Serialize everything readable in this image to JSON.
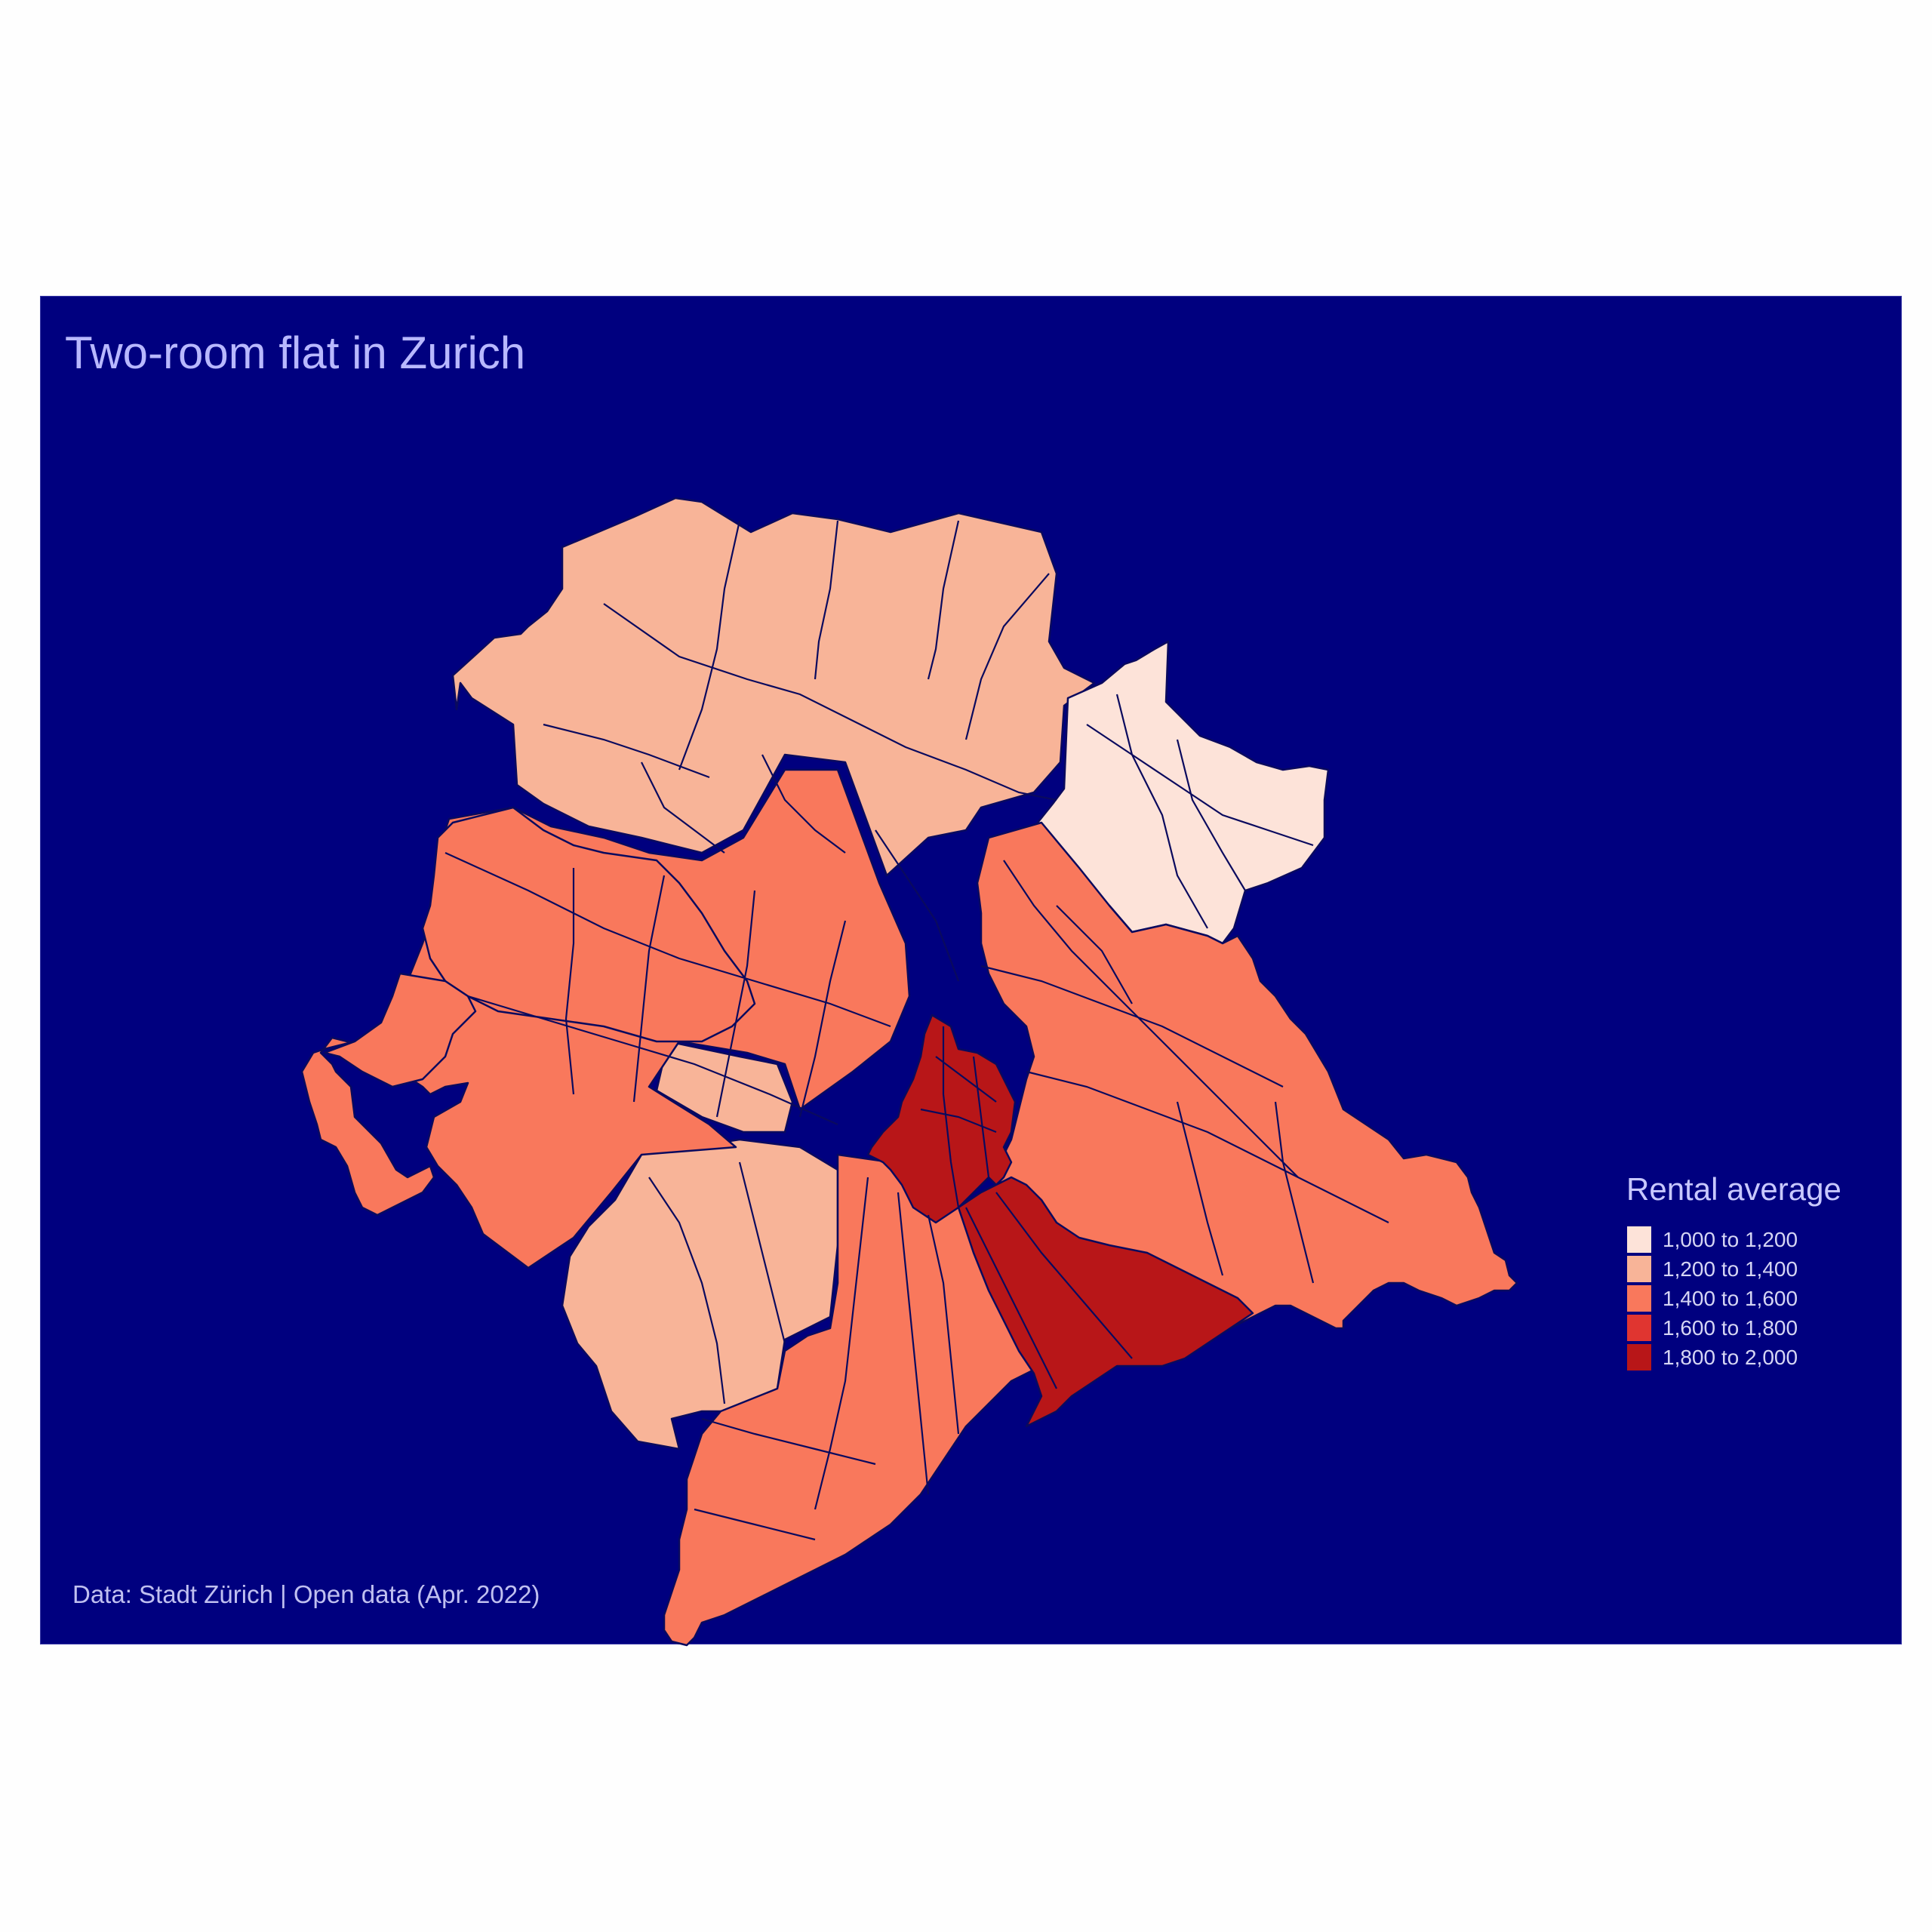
{
  "title": "Two-room flat in Zurich",
  "caption": "Data: Stadt Zürich | Open data (Apr. 2022)",
  "legend": {
    "title": "Rental average",
    "items": [
      {
        "label": "1,000 to 1,200",
        "color": "#fde3d9"
      },
      {
        "label": "1,200 to 1,400",
        "color": "#f8b498"
      },
      {
        "label": "1,400 to 1,600",
        "color": "#f9785c"
      },
      {
        "label": "1,600 to 1,800",
        "color": "#e03530"
      },
      {
        "label": "1,800 to 2,000",
        "color": "#b81618"
      }
    ]
  },
  "colors": {
    "panel_background": "#00007f",
    "district_border": "#0a0a5e"
  }
}
